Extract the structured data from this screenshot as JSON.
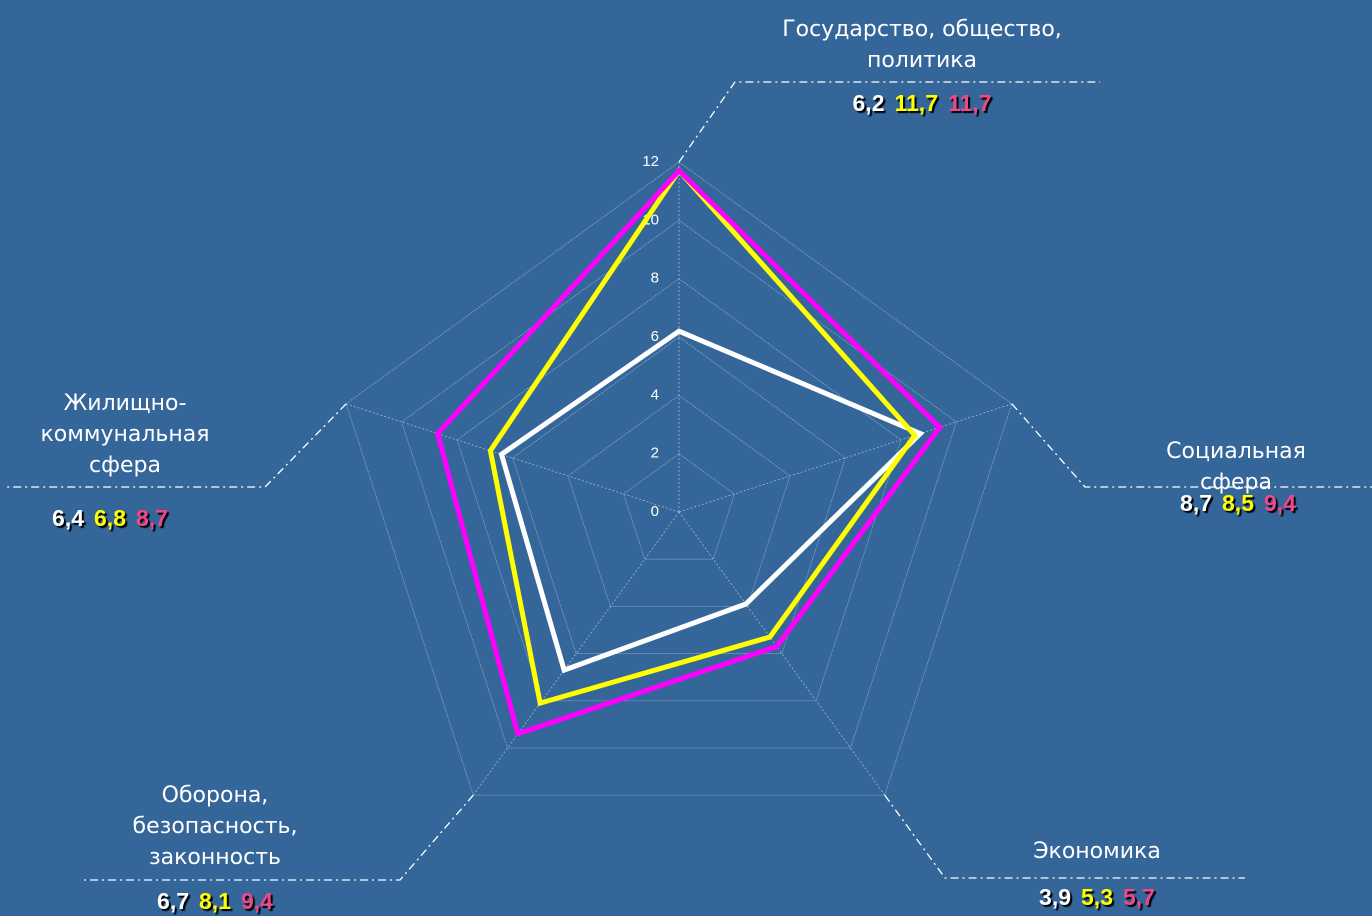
{
  "chart_data": {
    "type": "radar",
    "categories": [
      "Государство, общество,\nполитика",
      "Социальная сфера",
      "Экономика",
      "Оборона,\nбезопасность,\nзаконность",
      "Жилищно-\nкоммунальная\nсфера"
    ],
    "series": [
      {
        "color": "#ffffff",
        "label_color": "#ffffff",
        "values": [
          6.2,
          8.7,
          3.9,
          6.7,
          6.4
        ],
        "value_labels": [
          "6,2",
          "8,7",
          "3,9",
          "6,7",
          "6,4"
        ]
      },
      {
        "color": "#ffff00",
        "label_color": "#ffff00",
        "values": [
          11.7,
          8.5,
          5.3,
          8.1,
          6.8
        ],
        "value_labels": [
          "11,7",
          "8,5",
          "5,3",
          "8,1",
          "6,8"
        ]
      },
      {
        "color": "#ff00ff",
        "label_color": "#f0478a",
        "values": [
          11.7,
          9.4,
          5.7,
          9.4,
          8.7
        ],
        "value_labels": [
          "11,7",
          "9,4",
          "5,7",
          "9,4",
          "8,7"
        ]
      }
    ],
    "ylim": [
      0,
      12
    ],
    "yticks": [
      0,
      2,
      4,
      6,
      8,
      10,
      12
    ],
    "grid": true
  }
}
